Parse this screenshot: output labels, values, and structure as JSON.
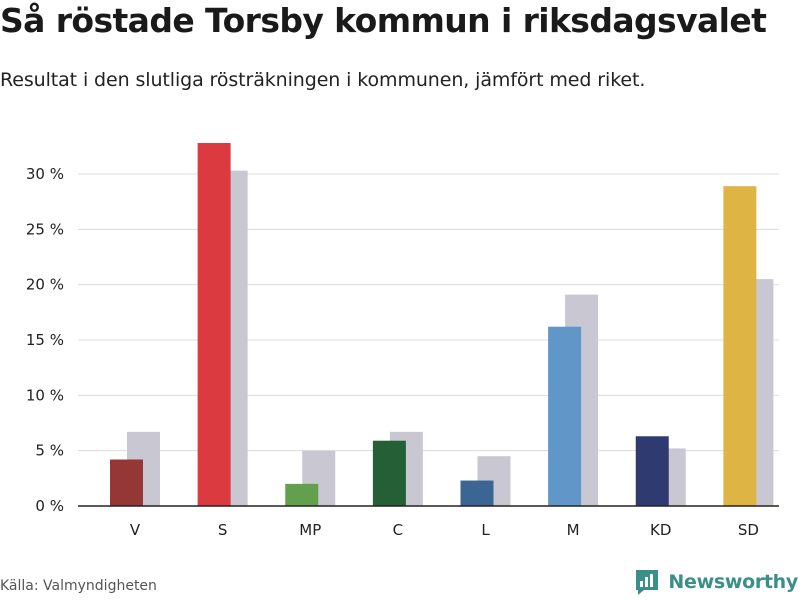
{
  "title": "Så röstade Torsby kommun i riksdagsvalet",
  "subtitle": "Resultat i den slutliga rösträkningen i kommunen, jämfört med riket.",
  "source": "Källa: Valmyndigheten",
  "brand": {
    "name": "Newsworthy",
    "icon": "newsworthy-logo-icon",
    "color": "#3a8f8a"
  },
  "chart_data": {
    "type": "bar",
    "categories": [
      "V",
      "S",
      "MP",
      "C",
      "L",
      "M",
      "KD",
      "SD"
    ],
    "series": [
      {
        "values": [
          4.2,
          32.8,
          2.0,
          5.9,
          2.3,
          16.2,
          6.3,
          28.9
        ]
      },
      {
        "values": [
          6.7,
          30.3,
          5.0,
          6.7,
          4.5,
          19.1,
          5.2,
          20.5
        ]
      }
    ],
    "colors": {
      "kommun": [
        "#953735",
        "#dc3a41",
        "#62a04e",
        "#255f35",
        "#3b6593",
        "#6097c8",
        "#2e3a70",
        "#deb444"
      ],
      "riket": "#c8c7d2"
    },
    "y_ticks": [
      "0 %",
      "5 %",
      "10 %",
      "15 %",
      "20 %",
      "25 %",
      "30 %"
    ],
    "y_tick_values": [
      0,
      5,
      10,
      15,
      20,
      25,
      30
    ],
    "ylim": [
      0,
      33
    ],
    "grid": true,
    "xlabel": "",
    "ylabel": ""
  }
}
